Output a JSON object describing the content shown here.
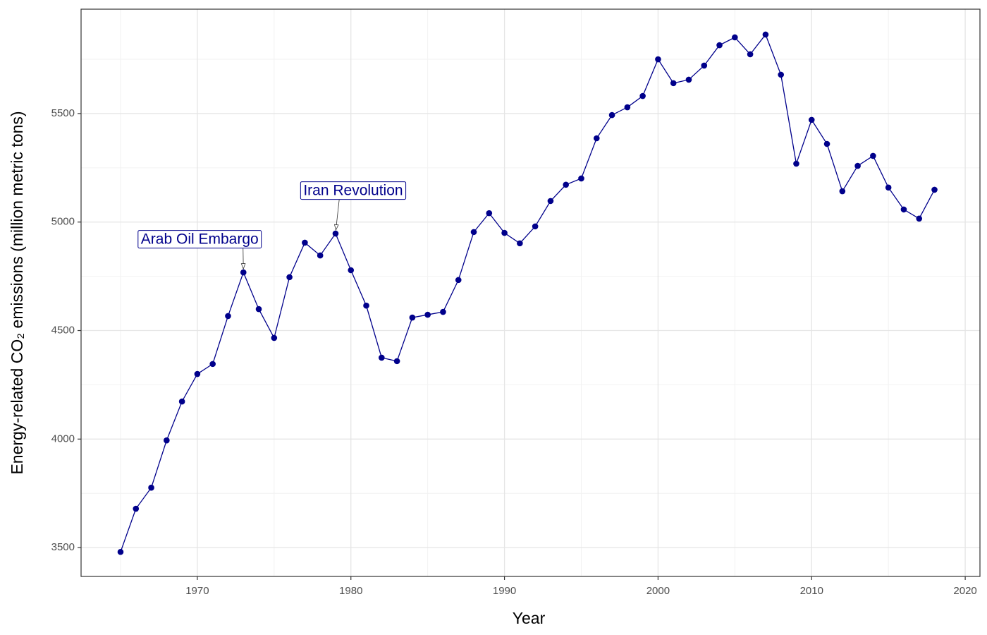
{
  "chart_data": {
    "type": "line",
    "x_label": "Year",
    "y_label": "Energy-related CO₂ emissions (million metric tons)",
    "x": [
      1965,
      1966,
      1967,
      1968,
      1969,
      1970,
      1971,
      1972,
      1973,
      1974,
      1975,
      1976,
      1977,
      1978,
      1979,
      1980,
      1981,
      1982,
      1983,
      1984,
      1985,
      1986,
      1987,
      1988,
      1989,
      1990,
      1991,
      1992,
      1993,
      1994,
      1995,
      1996,
      1997,
      1998,
      1999,
      2000,
      2001,
      2002,
      2003,
      2004,
      2005,
      2006,
      2007,
      2008,
      2009,
      2010,
      2011,
      2012,
      2013,
      2014,
      2015,
      2016,
      2017,
      2018
    ],
    "values": [
      3480,
      3679,
      3776,
      3994,
      4173,
      4300,
      4346,
      4567,
      4768,
      4599,
      4466,
      4746,
      4905,
      4846,
      4947,
      4778,
      4615,
      4375,
      4359,
      4560,
      4573,
      4586,
      4733,
      4954,
      5041,
      4950,
      4902,
      4980,
      5097,
      5172,
      5201,
      5386,
      5493,
      5529,
      5581,
      5750,
      5640,
      5656,
      5721,
      5815,
      5851,
      5773,
      5864,
      5679,
      5269,
      5471,
      5360,
      5142,
      5259,
      5305,
      5159,
      5058,
      5016,
      5149
    ],
    "color": "#00008B",
    "xlim": [
      1962.43,
      2020.96
    ],
    "ylim": [
      3367,
      5981
    ],
    "xticks": [
      1970,
      1980,
      1990,
      2000,
      2010,
      2020
    ],
    "yticks": [
      3500,
      4000,
      4500,
      5000,
      5500
    ],
    "grid": true,
    "annotations": [
      {
        "text": "Arab Oil Embargo",
        "x": 1973,
        "y": 4768
      },
      {
        "text": "Iran Revolution",
        "x": 1979,
        "y": 4947
      }
    ]
  }
}
